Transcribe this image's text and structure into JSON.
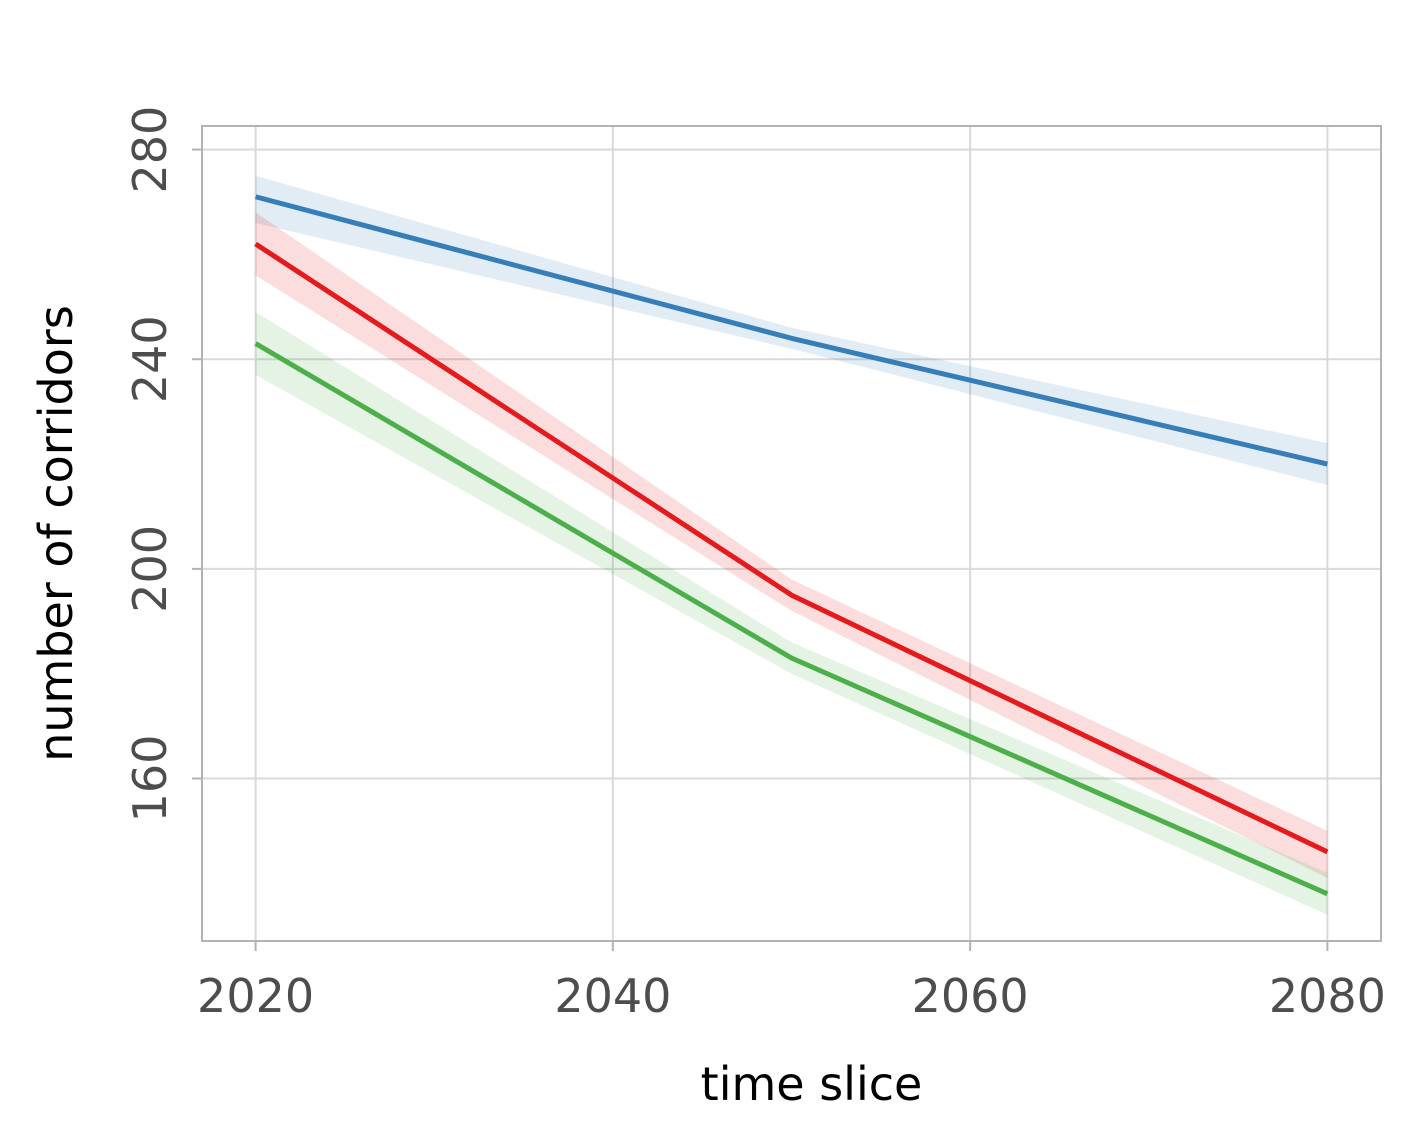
{
  "chart_data": {
    "type": "line",
    "title": "",
    "xlabel": "time slice",
    "ylabel": "number of corridors",
    "xlim": [
      2017,
      2083
    ],
    "ylim": [
      129,
      284.5
    ],
    "x_ticks": [
      2020,
      2040,
      2060,
      2080
    ],
    "y_ticks": [
      160,
      200,
      240,
      280
    ],
    "x_tick_labels": [
      "2020",
      "2040",
      "2060",
      "2080"
    ],
    "y_tick_labels": [
      "160",
      "200",
      "240",
      "280"
    ],
    "grid": true,
    "legend": "none",
    "series": [
      {
        "color": "#377eb8",
        "x": [
          2020,
          2050,
          2080
        ],
        "y": [
          271,
          244,
          220
        ],
        "band_lower": [
          266,
          242,
          216
        ],
        "band_upper": [
          275,
          246,
          224
        ]
      },
      {
        "color": "#e41a1c",
        "x": [
          2020,
          2050,
          2080
        ],
        "y": [
          262,
          195,
          146
        ],
        "band_lower": [
          256,
          192,
          141
        ],
        "band_upper": [
          268,
          198,
          150
        ]
      },
      {
        "color": "#4daf4a",
        "x": [
          2020,
          2050,
          2080
        ],
        "y": [
          243,
          183,
          138
        ],
        "band_lower": [
          237,
          180,
          134
        ],
        "band_upper": [
          249,
          186,
          142
        ]
      }
    ]
  }
}
